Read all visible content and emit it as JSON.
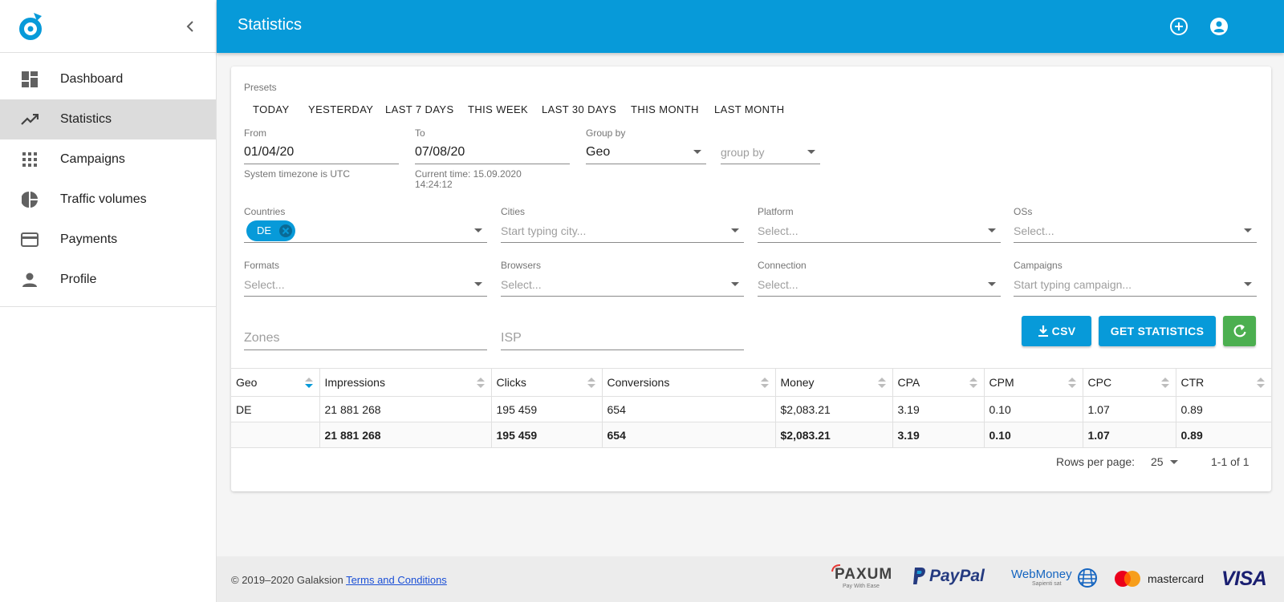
{
  "app": {
    "logo": "galaksion-logo-icon"
  },
  "sidebar": {
    "items": [
      {
        "label": "Dashboard",
        "icon": "dashboard-icon"
      },
      {
        "label": "Statistics",
        "icon": "trending-up-icon",
        "active": true
      },
      {
        "label": "Campaigns",
        "icon": "apps-grid-icon"
      },
      {
        "label": "Traffic volumes",
        "icon": "pie-chart-icon"
      },
      {
        "label": "Payments",
        "icon": "credit-card-icon"
      },
      {
        "label": "Profile",
        "icon": "person-icon"
      }
    ]
  },
  "header": {
    "title": "Statistics"
  },
  "filters": {
    "presets_label": "Presets",
    "presets": [
      "TODAY",
      "YESTERDAY",
      "LAST 7 DAYS",
      "THIS WEEK",
      "LAST 30 DAYS",
      "THIS MONTH",
      "LAST MONTH"
    ],
    "from": {
      "label": "From",
      "value": "01/04/20",
      "hint": "System timezone is UTC"
    },
    "to": {
      "label": "To",
      "value": "07/08/20",
      "hint_line1": "Current time: 15.09.2020",
      "hint_line2": "14:24:12"
    },
    "group_by": {
      "label": "Group by",
      "value": "Geo",
      "second_placeholder": "group by"
    },
    "countries": {
      "label": "Countries",
      "chip": "DE"
    },
    "cities": {
      "label": "Cities",
      "placeholder": "Start typing city..."
    },
    "platform": {
      "label": "Platform",
      "placeholder": "Select..."
    },
    "oss": {
      "label": "OSs",
      "placeholder": "Select..."
    },
    "formats": {
      "label": "Formats",
      "placeholder": "Select..."
    },
    "browsers": {
      "label": "Browsers",
      "placeholder": "Select..."
    },
    "connection": {
      "label": "Connection",
      "placeholder": "Select..."
    },
    "campaigns": {
      "label": "Campaigns",
      "placeholder": "Start typing campaign..."
    },
    "zones": {
      "placeholder": "Zones"
    },
    "isp": {
      "placeholder": "ISP"
    }
  },
  "actions": {
    "csv": "CSV",
    "get_statistics": "GET STATISTICS"
  },
  "table": {
    "columns": [
      "Geo",
      "Impressions",
      "Clicks",
      "Conversions",
      "Money",
      "CPA",
      "CPM",
      "CPC",
      "CTR"
    ],
    "rows": [
      [
        "DE",
        "21 881 268",
        "195 459",
        "654",
        "$2,083.21",
        "3.19",
        "0.10",
        "1.07",
        "0.89"
      ]
    ],
    "totals": [
      "",
      "21 881 268",
      "195 459",
      "654",
      "$2,083.21",
      "3.19",
      "0.10",
      "1.07",
      "0.89"
    ]
  },
  "pagination": {
    "rows_per_page_label": "Rows per page:",
    "rows_per_page": "25",
    "range": "1-1 of 1"
  },
  "footer": {
    "copyright": "© 2019–2020 Galaksion",
    "terms": "Terms and Conditions",
    "payment_logos": {
      "paxum": "PAXUM",
      "paxum_tagline": "Pay With Ease",
      "paypal": "PayPal",
      "webmoney": "WebMoney",
      "webmoney_tagline": "Sapienti sat",
      "mastercard": "mastercard",
      "visa": "VISA"
    }
  },
  "colors": {
    "primary": "#079ad9",
    "success": "#4caf50"
  }
}
